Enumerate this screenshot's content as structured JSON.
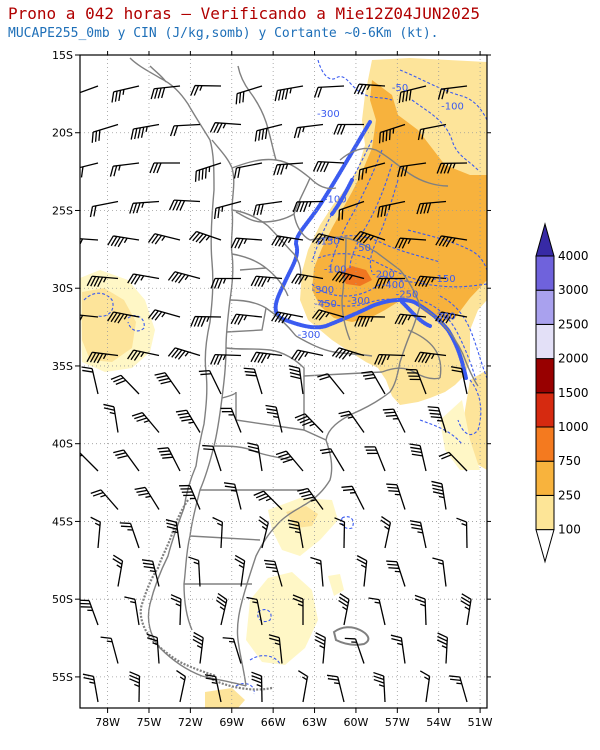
{
  "header": {
    "title": "Prono a 042 horas – Verificando a Mie12Z04JUN2025",
    "subtitle": "MUCAPE255_0mb y CIN (J/kg,somb) y Cortante ~0-6Km (kt)."
  },
  "map": {
    "lon_range": [
      -80,
      -50.5
    ],
    "lat_range": [
      -57,
      -15
    ],
    "x_ticks": [
      {
        "lon": -78,
        "label": "78W"
      },
      {
        "lon": -75,
        "label": "75W"
      },
      {
        "lon": -72,
        "label": "72W"
      },
      {
        "lon": -69,
        "label": "69W"
      },
      {
        "lon": -66,
        "label": "66W"
      },
      {
        "lon": -63,
        "label": "63W"
      },
      {
        "lon": -60,
        "label": "60W"
      },
      {
        "lon": -57,
        "label": "57W"
      },
      {
        "lon": -54,
        "label": "54W"
      },
      {
        "lon": -51,
        "label": "51W"
      }
    ],
    "y_ticks": [
      {
        "lat": -15,
        "label": "15S"
      },
      {
        "lat": -20,
        "label": "20S"
      },
      {
        "lat": -25,
        "label": "25S"
      },
      {
        "lat": -30,
        "label": "30S"
      },
      {
        "lat": -35,
        "label": "35S"
      },
      {
        "lat": -40,
        "label": "40S"
      },
      {
        "lat": -45,
        "label": "45S"
      },
      {
        "lat": -50,
        "label": "50S"
      },
      {
        "lat": -55,
        "label": "55S"
      }
    ],
    "grid": true,
    "cin_labels": [
      {
        "text": "-50",
        "lon": -56.8,
        "lat": -17.3
      },
      {
        "text": "-100",
        "lon": -53.0,
        "lat": -18.5
      },
      {
        "text": "-300",
        "lon": -62.0,
        "lat": -19.0
      },
      {
        "text": "-100",
        "lon": -61.5,
        "lat": -24.5
      },
      {
        "text": "-150",
        "lon": -62.0,
        "lat": -27.2
      },
      {
        "text": "-50",
        "lon": -59.5,
        "lat": -27.6
      },
      {
        "text": "-100",
        "lon": -61.5,
        "lat": -29.0
      },
      {
        "text": "-300",
        "lon": -62.4,
        "lat": -30.3
      },
      {
        "text": "-450",
        "lon": -62.2,
        "lat": -31.2
      },
      {
        "text": "-300",
        "lon": -59.8,
        "lat": -31.0
      },
      {
        "text": "-400",
        "lon": -57.3,
        "lat": -30.0
      },
      {
        "text": "-250",
        "lon": -56.3,
        "lat": -30.6
      },
      {
        "text": "-150",
        "lon": -53.6,
        "lat": -29.6
      },
      {
        "text": "-200",
        "lon": -58.0,
        "lat": -29.3
      },
      {
        "text": "-300",
        "lon": -53.6,
        "lat": -32.0
      },
      {
        "text": "-300",
        "lon": -63.4,
        "lat": -33.2
      }
    ]
  },
  "colorbar": {
    "levels": [
      "100",
      "250",
      "750",
      "1000",
      "1500",
      "2000",
      "2500",
      "3000",
      "4000"
    ],
    "colors": [
      "#fff5c0",
      "#fde597",
      "#f8b33d",
      "#f47a1f",
      "#d62a10",
      "#980000",
      "#e3e0f7",
      "#a9a1ee",
      "#6f62dc",
      "#372aa5"
    ]
  },
  "colors": {
    "capelow": "#fff7c6",
    "cape250": "#fde49a",
    "cape750": "#f7b23d",
    "cape1000": "#f07621",
    "cin": "#3b5bf0",
    "boundary": "#808080"
  }
}
